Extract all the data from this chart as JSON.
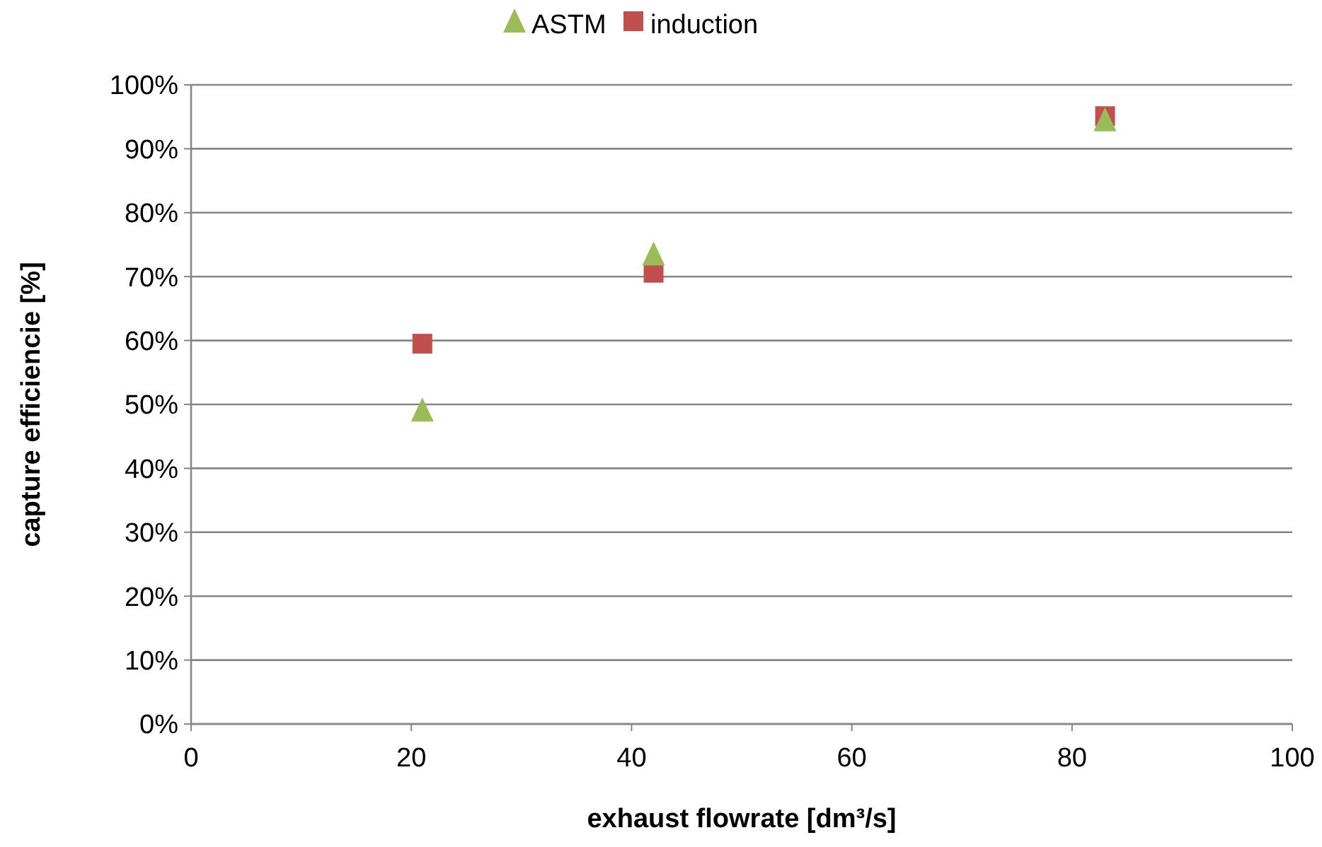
{
  "chart_data": {
    "type": "scatter",
    "xlabel": "exhaust flowrate [dm³/s]",
    "ylabel": "capture efficiencie [%]",
    "xlim": [
      0,
      100
    ],
    "xticks": [
      0,
      20,
      40,
      60,
      80,
      100
    ],
    "ylim": [
      0,
      100
    ],
    "yticks": [
      {
        "value": 0,
        "label": "0%"
      },
      {
        "value": 10,
        "label": "10%"
      },
      {
        "value": 20,
        "label": "20%"
      },
      {
        "value": 30,
        "label": "30%"
      },
      {
        "value": 40,
        "label": "40%"
      },
      {
        "value": 50,
        "label": "50%"
      },
      {
        "value": 60,
        "label": "60%"
      },
      {
        "value": 70,
        "label": "70%"
      },
      {
        "value": 80,
        "label": "80%"
      },
      {
        "value": 90,
        "label": "90%"
      },
      {
        "value": 100,
        "label": "100%"
      }
    ],
    "grid": "y",
    "legend": "top",
    "series": [
      {
        "name": "ASTM",
        "color": "#9bbb59",
        "marker": "triangle",
        "x": [
          21,
          42,
          83
        ],
        "values": [
          49.1,
          73.5,
          94.5
        ]
      },
      {
        "name": "induction",
        "color": "#c0504d",
        "marker": "square",
        "x": [
          21,
          42,
          83
        ],
        "values": [
          59.5,
          70.6,
          95.1
        ]
      }
    ]
  }
}
